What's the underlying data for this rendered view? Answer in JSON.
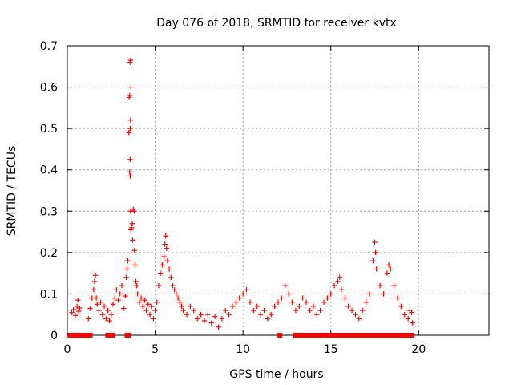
{
  "chart_data": {
    "type": "scatter",
    "title": "Day 076 of 2018, SRMTID for receiver kvtx",
    "xlabel": "GPS time / hours",
    "ylabel": "SRMTID / TECUs",
    "xlim": [
      0,
      24
    ],
    "ylim": [
      0,
      0.7
    ],
    "xticks": [
      0,
      5,
      10,
      15,
      20
    ],
    "yticks": [
      0,
      0.1,
      0.2,
      0.3,
      0.4,
      0.5,
      0.6,
      0.7
    ],
    "ytick_labels": [
      "0",
      "0.1",
      "0.2",
      "0.3",
      "0.4",
      "0.5",
      "0.6",
      "0.7"
    ],
    "grid": true,
    "colors": {
      "marker": "#ff0000",
      "grid": "#a0a0a0",
      "axis": "#000000"
    },
    "series": [
      {
        "name": "SRMTID",
        "marker": "plus",
        "points": [
          [
            0.25,
            0.055
          ],
          [
            0.35,
            0.062
          ],
          [
            0.45,
            0.048
          ],
          [
            0.55,
            0.07
          ],
          [
            0.6,
            0.085
          ],
          [
            0.65,
            0.058
          ],
          [
            0.7,
            0.066
          ],
          [
            1.2,
            0.04
          ],
          [
            1.3,
            0.065
          ],
          [
            1.4,
            0.09
          ],
          [
            1.5,
            0.11
          ],
          [
            1.55,
            0.13
          ],
          [
            1.6,
            0.145
          ],
          [
            1.65,
            0.09
          ],
          [
            1.7,
            0.075
          ],
          [
            1.8,
            0.06
          ],
          [
            1.9,
            0.08
          ],
          [
            2.0,
            0.05
          ],
          [
            2.1,
            0.07
          ],
          [
            2.2,
            0.04
          ],
          [
            2.3,
            0.06
          ],
          [
            2.4,
            0.035
          ],
          [
            2.5,
            0.05
          ],
          [
            2.6,
            0.075
          ],
          [
            2.7,
            0.09
          ],
          [
            2.8,
            0.11
          ],
          [
            2.9,
            0.085
          ],
          [
            3.0,
            0.1
          ],
          [
            3.1,
            0.12
          ],
          [
            3.2,
            0.065
          ],
          [
            3.3,
            0.095
          ],
          [
            3.35,
            0.14
          ],
          [
            3.4,
            0.16
          ],
          [
            3.45,
            0.18
          ],
          [
            3.5,
            0.49
          ],
          [
            3.52,
            0.575
          ],
          [
            3.55,
            0.58
          ],
          [
            3.57,
            0.66
          ],
          [
            3.6,
            0.665
          ],
          [
            3.62,
            0.6
          ],
          [
            3.6,
            0.52
          ],
          [
            3.58,
            0.5
          ],
          [
            3.57,
            0.425
          ],
          [
            3.55,
            0.395
          ],
          [
            3.58,
            0.385
          ],
          [
            3.6,
            0.3
          ],
          [
            3.62,
            0.255
          ],
          [
            3.65,
            0.26
          ],
          [
            3.7,
            0.27
          ],
          [
            3.72,
            0.23
          ],
          [
            3.75,
            0.305
          ],
          [
            3.8,
            0.3
          ],
          [
            3.82,
            0.205
          ],
          [
            3.85,
            0.17
          ],
          [
            3.9,
            0.13
          ],
          [
            3.95,
            0.12
          ],
          [
            4.0,
            0.1
          ],
          [
            4.1,
            0.08
          ],
          [
            4.2,
            0.09
          ],
          [
            4.3,
            0.07
          ],
          [
            4.4,
            0.085
          ],
          [
            4.5,
            0.06
          ],
          [
            4.6,
            0.075
          ],
          [
            4.7,
            0.05
          ],
          [
            4.8,
            0.07
          ],
          [
            4.9,
            0.04
          ],
          [
            5.0,
            0.06
          ],
          [
            5.1,
            0.08
          ],
          [
            5.2,
            0.12
          ],
          [
            5.3,
            0.15
          ],
          [
            5.4,
            0.17
          ],
          [
            5.5,
            0.19
          ],
          [
            5.55,
            0.22
          ],
          [
            5.6,
            0.24
          ],
          [
            5.65,
            0.21
          ],
          [
            5.7,
            0.18
          ],
          [
            5.8,
            0.16
          ],
          [
            5.9,
            0.14
          ],
          [
            6.0,
            0.12
          ],
          [
            6.1,
            0.11
          ],
          [
            6.2,
            0.1
          ],
          [
            6.3,
            0.09
          ],
          [
            6.4,
            0.08
          ],
          [
            6.5,
            0.07
          ],
          [
            6.6,
            0.06
          ],
          [
            6.8,
            0.05
          ],
          [
            7.0,
            0.07
          ],
          [
            7.2,
            0.06
          ],
          [
            7.4,
            0.04
          ],
          [
            7.6,
            0.05
          ],
          [
            7.8,
            0.035
          ],
          [
            8.0,
            0.05
          ],
          [
            8.2,
            0.03
          ],
          [
            8.4,
            0.045
          ],
          [
            8.6,
            0.02
          ],
          [
            8.8,
            0.04
          ],
          [
            9.0,
            0.06
          ],
          [
            9.2,
            0.05
          ],
          [
            9.4,
            0.07
          ],
          [
            9.6,
            0.08
          ],
          [
            9.8,
            0.09
          ],
          [
            10.0,
            0.1
          ],
          [
            10.2,
            0.11
          ],
          [
            10.4,
            0.08
          ],
          [
            10.6,
            0.06
          ],
          [
            10.8,
            0.07
          ],
          [
            11.0,
            0.05
          ],
          [
            11.2,
            0.06
          ],
          [
            11.4,
            0.04
          ],
          [
            11.6,
            0.05
          ],
          [
            11.8,
            0.07
          ],
          [
            12.0,
            0.08
          ],
          [
            12.2,
            0.09
          ],
          [
            12.4,
            0.12
          ],
          [
            12.6,
            0.1
          ],
          [
            12.8,
            0.08
          ],
          [
            13.0,
            0.06
          ],
          [
            13.2,
            0.07
          ],
          [
            13.4,
            0.09
          ],
          [
            13.6,
            0.08
          ],
          [
            13.8,
            0.06
          ],
          [
            14.0,
            0.07
          ],
          [
            14.2,
            0.05
          ],
          [
            14.4,
            0.06
          ],
          [
            14.6,
            0.08
          ],
          [
            14.8,
            0.09
          ],
          [
            15.0,
            0.1
          ],
          [
            15.2,
            0.12
          ],
          [
            15.4,
            0.13
          ],
          [
            15.5,
            0.14
          ],
          [
            15.6,
            0.11
          ],
          [
            15.8,
            0.09
          ],
          [
            16.0,
            0.07
          ],
          [
            16.2,
            0.06
          ],
          [
            16.4,
            0.05
          ],
          [
            16.6,
            0.04
          ],
          [
            16.8,
            0.06
          ],
          [
            17.0,
            0.08
          ],
          [
            17.2,
            0.1
          ],
          [
            17.4,
            0.18
          ],
          [
            17.5,
            0.225
          ],
          [
            17.55,
            0.2
          ],
          [
            17.6,
            0.16
          ],
          [
            17.8,
            0.12
          ],
          [
            18.0,
            0.1
          ],
          [
            18.2,
            0.15
          ],
          [
            18.3,
            0.17
          ],
          [
            18.4,
            0.16
          ],
          [
            18.6,
            0.12
          ],
          [
            18.8,
            0.09
          ],
          [
            19.0,
            0.07
          ],
          [
            19.2,
            0.05
          ],
          [
            19.4,
            0.04
          ],
          [
            19.5,
            0.06
          ],
          [
            19.6,
            0.055
          ],
          [
            19.65,
            0.03
          ]
        ]
      }
    ],
    "zero_band_marks": [
      0.15,
      0.25,
      0.35,
      0.45,
      0.55,
      0.65,
      0.75,
      1.0,
      1.1,
      1.2,
      1.3,
      2.3,
      2.4,
      2.5,
      2.6,
      3.4,
      3.5,
      12.1,
      13.0,
      13.2,
      13.4,
      13.6,
      13.8,
      14.0,
      14.2,
      14.4,
      14.6,
      14.8,
      15.0,
      15.2,
      15.4,
      15.6,
      15.8,
      16.0,
      16.2,
      16.4,
      16.6,
      16.8,
      17.0,
      17.2,
      17.4,
      17.6,
      17.8,
      18.0,
      18.2,
      18.4,
      18.6,
      18.8,
      19.0,
      19.2,
      19.4,
      19.6
    ]
  }
}
